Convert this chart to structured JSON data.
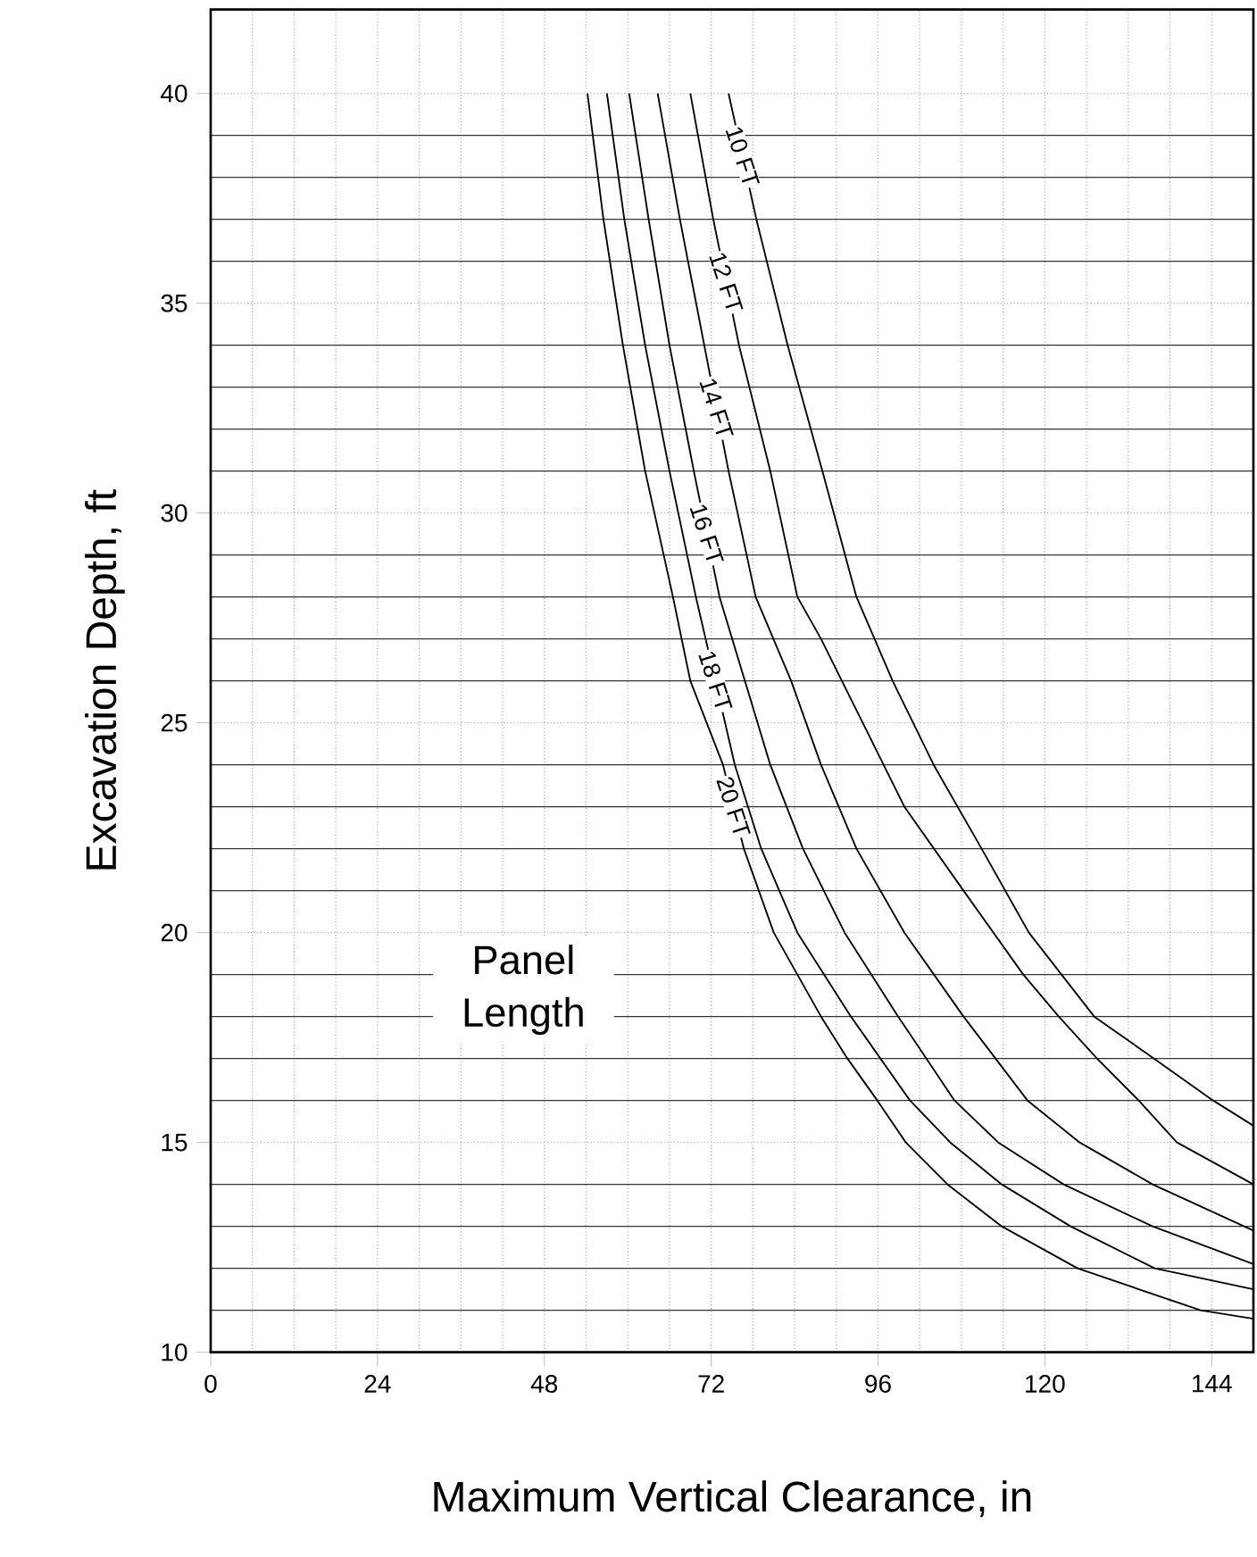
{
  "chart_data": {
    "type": "line",
    "xlabel": "Maximum Vertical Clearance, in",
    "ylabel": "Excavation Depth, ft",
    "xlim": [
      0,
      150
    ],
    "ylim": [
      10,
      42
    ],
    "xticks": [
      0,
      24,
      48,
      72,
      96,
      120,
      144
    ],
    "yticks": [
      10,
      15,
      20,
      25,
      30,
      35,
      40
    ],
    "grid": true,
    "annotations": [
      "Panel Length"
    ],
    "series": [
      {
        "name": "10 FT",
        "color": "#000000",
        "x": [
          74.5,
          78.5,
          83,
          88,
          92.9,
          98.1,
          104.0,
          110.9,
          117.7,
          127.1,
          135.7,
          144.2,
          150
        ],
        "values": [
          40,
          37,
          34,
          31,
          28,
          26,
          24,
          22,
          20,
          18,
          17,
          16,
          15.4
        ]
      },
      {
        "name": "12 FT",
        "color": "#000000",
        "x": [
          69.0,
          72.3,
          76,
          80.5,
          84.4,
          87.8,
          93.8,
          99.8,
          108.3,
          116.9,
          122,
          127.5,
          133.5,
          139,
          150
        ],
        "values": [
          40,
          37,
          34,
          31,
          28,
          27,
          25,
          23,
          21,
          19,
          18,
          17,
          16,
          15,
          14
        ]
      },
      {
        "name": "14 FT",
        "color": "#000000",
        "x": [
          64.3,
          67.5,
          71,
          74.5,
          78.4,
          83.5,
          87.8,
          92.9,
          99.8,
          108.3,
          117.5,
          125,
          135.5,
          150
        ],
        "values": [
          40,
          37,
          34,
          31,
          28,
          26,
          24,
          22,
          20,
          18,
          16,
          15,
          14,
          12.9
        ]
      },
      {
        "name": "16 FT",
        "color": "#000000",
        "x": [
          60.2,
          63,
          66,
          69.5,
          73.2,
          80.5,
          85.2,
          91.2,
          98.9,
          107,
          113.3,
          122.7,
          135.5,
          150
        ],
        "values": [
          40,
          37,
          34,
          31,
          28,
          24,
          22,
          20,
          18,
          16,
          15,
          14,
          13,
          12.1
        ]
      },
      {
        "name": "18 FT",
        "color": "#000000",
        "x": [
          57.0,
          59.5,
          62.5,
          66,
          69.8,
          75.4,
          79.2,
          84.4,
          92.1,
          100.6,
          106.4,
          113.8,
          123.7,
          135.8,
          150
        ],
        "values": [
          40,
          37,
          34,
          31,
          28,
          24,
          22,
          20,
          18,
          16,
          15,
          14,
          13,
          12,
          11.5
        ]
      },
      {
        "name": "20 FT",
        "color": "#000000",
        "x": [
          54.2,
          56.5,
          59.3,
          62.5,
          66.5,
          69.0,
          73.7,
          76.7,
          81,
          87.8,
          91.6,
          95.9,
          100,
          106,
          113.8,
          124.7,
          142.4,
          150
        ],
        "values": [
          40,
          37,
          34,
          31,
          28,
          26,
          24,
          22,
          20,
          18,
          17,
          16,
          15,
          14,
          13,
          12,
          11,
          10.8
        ]
      }
    ]
  }
}
